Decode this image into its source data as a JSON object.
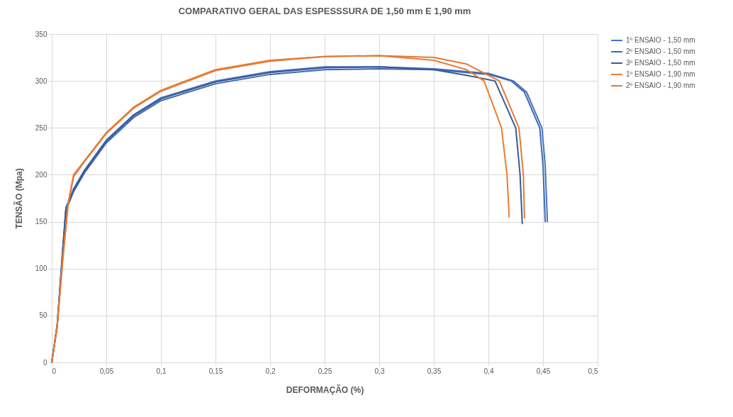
{
  "chart_data": {
    "type": "line",
    "title": "COMPARATIVO GERAL DAS ESPESSSURA DE 1,50 mm E 1,90 mm",
    "xlabel": "DEFORMAÇÃO (%)",
    "ylabel": "TENSÃO (Mpa)",
    "xlim": [
      0,
      0.5
    ],
    "xticks": [
      0,
      {
        "value": 0.05,
        "label": "0,05"
      },
      {
        "value": 0.1,
        "label": "0,1"
      },
      {
        "value": 0.15,
        "label": "0,15"
      },
      {
        "value": 0.2,
        "label": "0,2"
      },
      {
        "value": 0.25,
        "label": "0,25"
      },
      {
        "value": 0.3,
        "label": "0,3"
      },
      {
        "value": 0.35,
        "label": "0,35"
      },
      {
        "value": 0.4,
        "label": "0,4"
      },
      {
        "value": 0.45,
        "label": "0,45"
      },
      {
        "value": 0.5,
        "label": "0,5"
      }
    ],
    "ylim": [
      0,
      350
    ],
    "yticks": [
      0,
      50,
      100,
      150,
      200,
      250,
      300,
      350
    ],
    "grid": true,
    "legend": "right",
    "marker": "none",
    "line_style": "solid",
    "series": [
      {
        "name": "1º ENSAIO - 1,50 mm",
        "color": "#4472c4",
        "x": [
          0,
          0.005,
          0.01,
          0.013,
          0.02,
          0.03,
          0.05,
          0.075,
          0.1,
          0.15,
          0.2,
          0.25,
          0.3,
          0.35,
          0.4,
          0.423,
          0.435,
          0.449,
          0.452,
          0.454
        ],
        "values": [
          0,
          40,
          120,
          165,
          185,
          205,
          237,
          264,
          282,
          300,
          310,
          315,
          315,
          313,
          308,
          300,
          288,
          250,
          210,
          150
        ]
      },
      {
        "name": "2º ENSAIO - 1,50 mm",
        "color": "#3f68b0",
        "x": [
          0,
          0.005,
          0.01,
          0.013,
          0.02,
          0.03,
          0.05,
          0.075,
          0.1,
          0.15,
          0.2,
          0.25,
          0.3,
          0.35,
          0.4,
          0.421,
          0.433,
          0.447,
          0.45,
          0.452
        ],
        "values": [
          0,
          38,
          115,
          162,
          182,
          202,
          234,
          261,
          279,
          297,
          307,
          312,
          313,
          312,
          307,
          300,
          288,
          250,
          210,
          150
        ]
      },
      {
        "name": "3º ENSAIO - 1,50 mm",
        "color": "#3a5a94",
        "x": [
          0,
          0.005,
          0.01,
          0.013,
          0.02,
          0.03,
          0.05,
          0.075,
          0.1,
          0.15,
          0.2,
          0.25,
          0.3,
          0.35,
          0.38,
          0.406,
          0.425,
          0.429,
          0.431
        ],
        "values": [
          0,
          40,
          118,
          164,
          184,
          204,
          236,
          263,
          281,
          299,
          309,
          314,
          315,
          312,
          306,
          300,
          250,
          200,
          148
        ]
      },
      {
        "name": "1º ENSAIO - 1,90 mm",
        "color": "#ed7d31",
        "x": [
          0,
          0.005,
          0.01,
          0.015,
          0.02,
          0.03,
          0.05,
          0.075,
          0.1,
          0.15,
          0.2,
          0.25,
          0.3,
          0.35,
          0.38,
          0.396,
          0.412,
          0.417,
          0.419
        ],
        "values": [
          0,
          40,
          110,
          170,
          200,
          215,
          245,
          272,
          290,
          312,
          322,
          326,
          327,
          322,
          312,
          300,
          250,
          200,
          155
        ]
      },
      {
        "name": "2º ENSAIO - 1,90 mm",
        "color": "#e07b39",
        "x": [
          0,
          0.005,
          0.01,
          0.015,
          0.02,
          0.03,
          0.05,
          0.075,
          0.1,
          0.15,
          0.2,
          0.25,
          0.3,
          0.35,
          0.38,
          0.41,
          0.428,
          0.432,
          0.433
        ],
        "values": [
          0,
          38,
          108,
          168,
          198,
          214,
          244,
          271,
          289,
          311,
          321,
          326,
          327,
          325,
          318,
          300,
          250,
          200,
          154
        ]
      }
    ]
  }
}
